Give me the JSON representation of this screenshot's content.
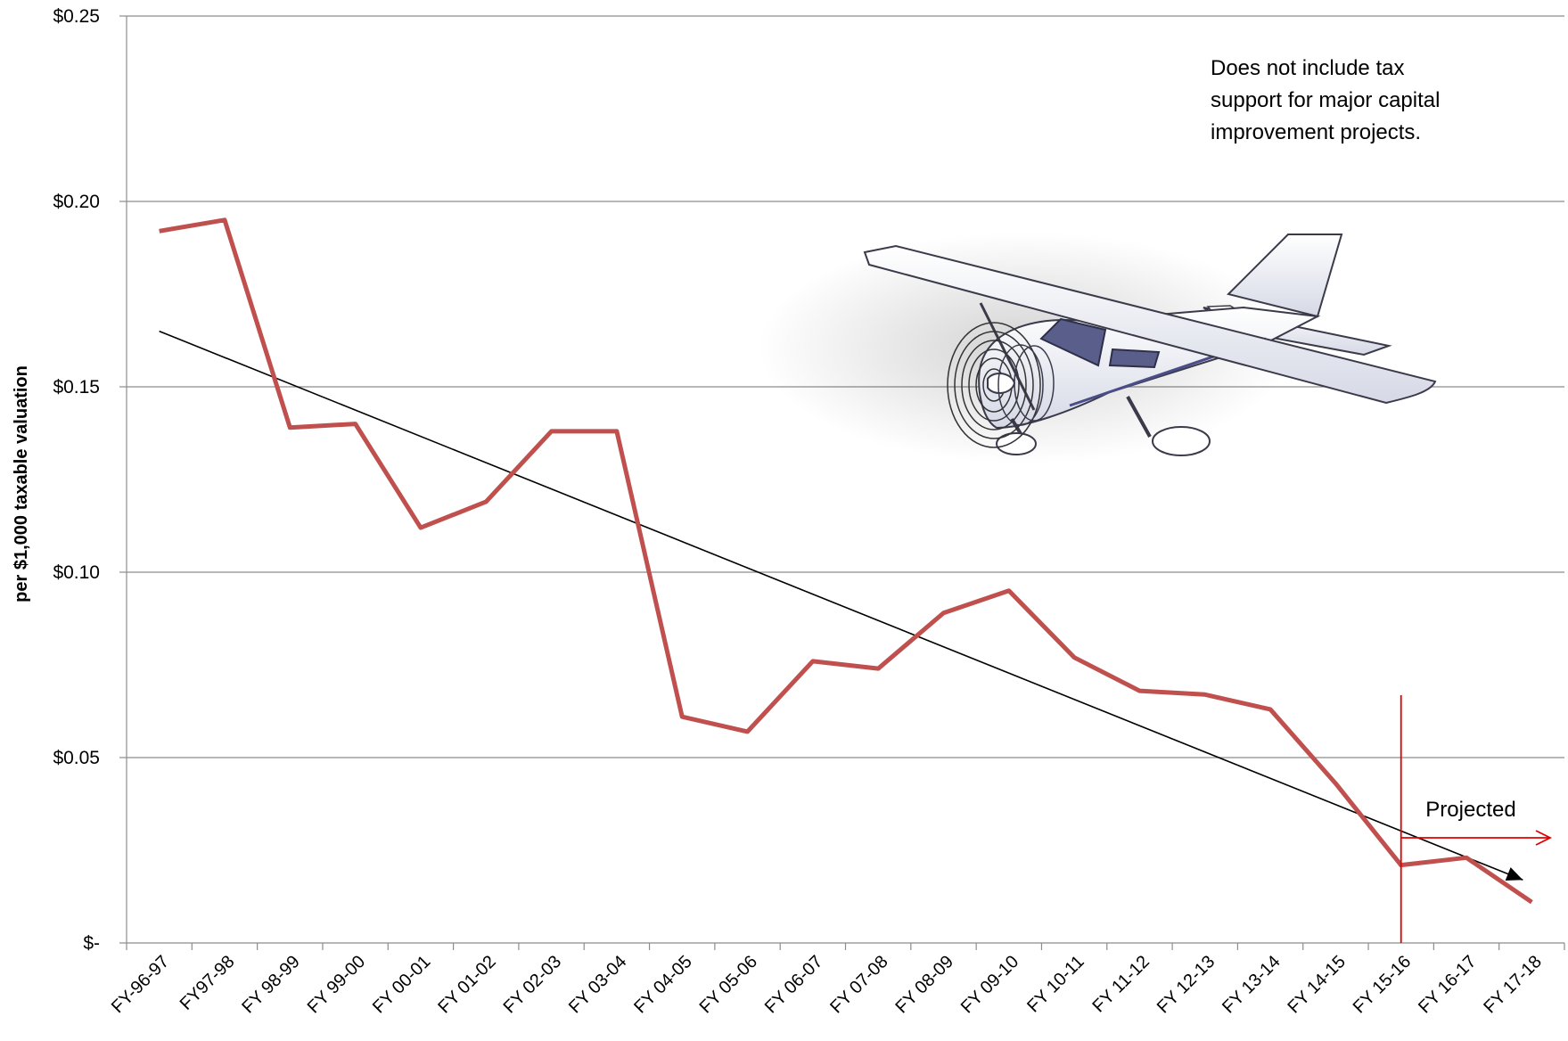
{
  "chart_data": {
    "type": "line",
    "title": "",
    "xlabel": "",
    "ylabel": "per $1,000 taxable valuation",
    "ylim": [
      0,
      0.25
    ],
    "yticks": [
      {
        "value": 0,
        "label": "$-"
      },
      {
        "value": 0.05,
        "label": "$0.05"
      },
      {
        "value": 0.1,
        "label": "$0.10"
      },
      {
        "value": 0.15,
        "label": "$0.15"
      },
      {
        "value": 0.2,
        "label": "$0.20"
      },
      {
        "value": 0.25,
        "label": "$0.25"
      }
    ],
    "grid": "horizontal",
    "categories": [
      "FY-96-97",
      "FY97-98",
      "FY 98-99",
      "FY 99-00",
      "FY 00-01",
      "FY 01-02",
      "FY 02-03",
      "FY 03-04",
      "FY 04-05",
      "FY 05-06",
      "FY 06-07",
      "FY 07-08",
      "FY 08-09",
      "FY 09-10",
      "FY 10-11",
      "FY 11-12",
      "FY 12-13",
      "FY 13-14",
      "FY 14-15",
      "FY 15-16",
      "FY 16-17",
      "FY 17-18"
    ],
    "series": [
      {
        "color": "#c0504d",
        "values": [
          0.192,
          0.195,
          0.139,
          0.14,
          0.112,
          0.119,
          0.138,
          0.138,
          0.061,
          0.057,
          0.076,
          0.074,
          0.089,
          0.095,
          0.077,
          0.068,
          0.067,
          0.063,
          0.043,
          0.021,
          0.023,
          0.011
        ]
      }
    ],
    "trendline": {
      "color": "#000000",
      "start": {
        "category": "FY-96-97",
        "value": 0.165
      },
      "end": {
        "category": "FY 17-18",
        "value": 0.017
      }
    },
    "projection": {
      "color": "#e00000",
      "start_category": "FY 15-16",
      "label": "Projected"
    },
    "annotations": [
      {
        "lines": [
          "Does not include tax",
          "support for major capital",
          "improvement projects."
        ]
      }
    ]
  },
  "illustration": {
    "name": "airplane-illustration",
    "colors": {
      "body": "#ffffff",
      "outline": "#3a3a4a",
      "window": "#5a5e8a",
      "stripe": "#4a4d8a"
    }
  }
}
